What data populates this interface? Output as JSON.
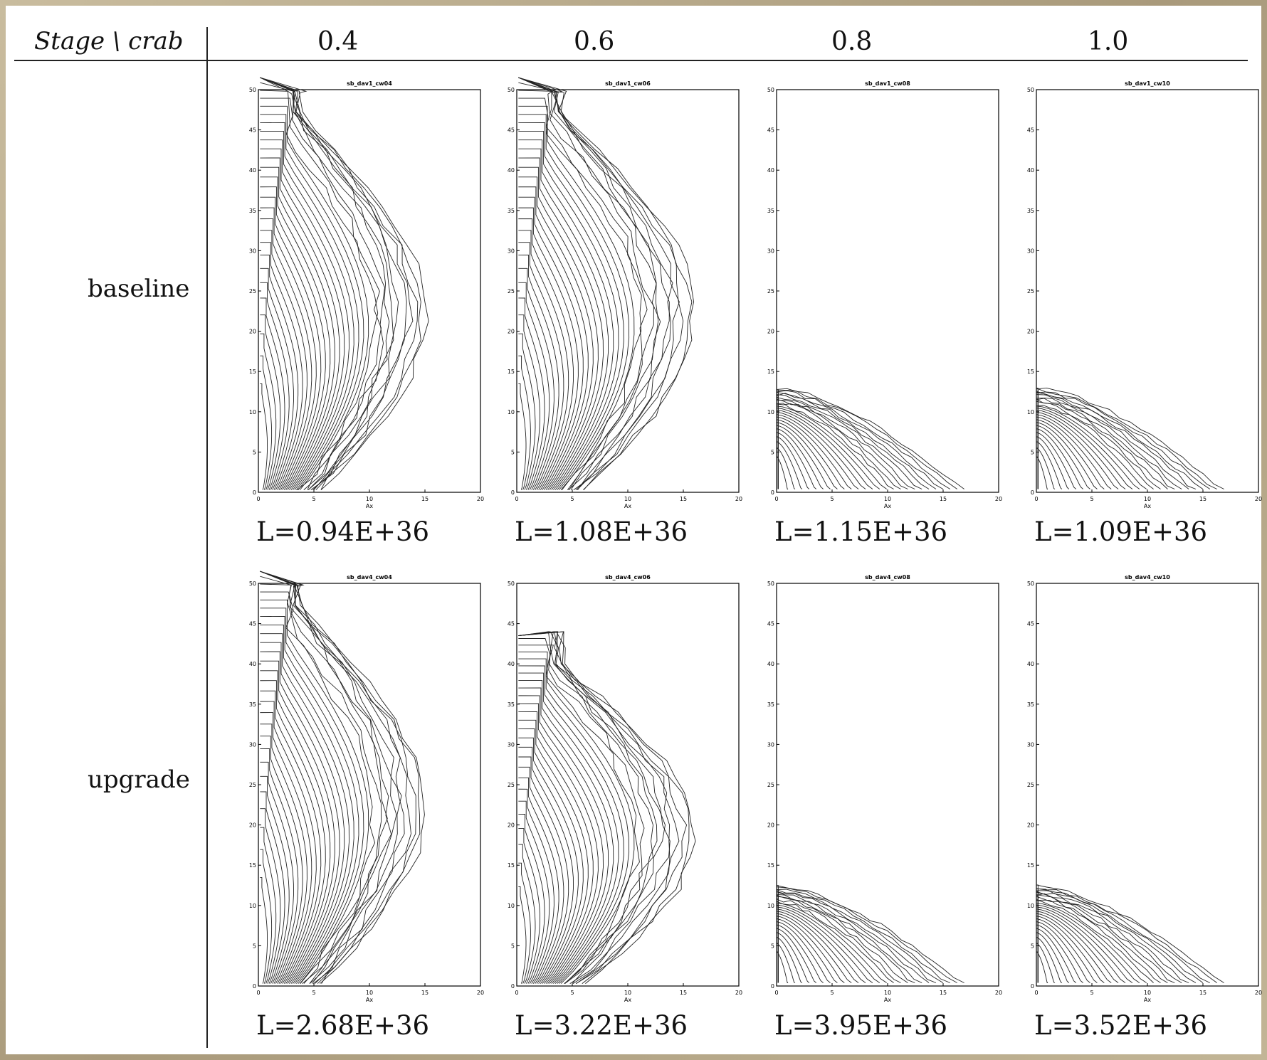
{
  "corner_label": "Stage \\ crab",
  "columns": [
    "0.4",
    "0.6",
    "0.8",
    "1.0"
  ],
  "rows": [
    "baseline",
    "upgrade"
  ],
  "chart_data": [
    {
      "type": "contour",
      "row": "baseline",
      "col": "0.4",
      "title": "sb_dav1_cw04",
      "xlim": [
        0,
        20
      ],
      "ylim": [
        0,
        50
      ],
      "x_ticks": [
        "0",
        "5",
        "10",
        "15",
        "20"
      ],
      "y_ticks": [
        "0",
        "5",
        "10",
        "15",
        "20",
        "25",
        "30",
        "35",
        "40",
        "45",
        "50"
      ],
      "xlabel": "Ax",
      "luminosity": "L=0.94E+36",
      "shape": "tall"
    },
    {
      "type": "contour",
      "row": "baseline",
      "col": "0.6",
      "title": "sb_dav1_cw06",
      "xlim": [
        0,
        20
      ],
      "ylim": [
        0,
        50
      ],
      "x_ticks": [
        "0",
        "5",
        "10",
        "15",
        "20"
      ],
      "y_ticks": [
        "0",
        "5",
        "10",
        "15",
        "20",
        "25",
        "30",
        "35",
        "40",
        "45",
        "50"
      ],
      "xlabel": "Ax",
      "luminosity": "L=1.08E+36",
      "shape": "tall"
    },
    {
      "type": "contour",
      "row": "baseline",
      "col": "0.8",
      "title": "sb_dav1_cw08",
      "xlim": [
        0,
        20
      ],
      "ylim": [
        0,
        50
      ],
      "x_ticks": [
        "0",
        "5",
        "10",
        "15",
        "20"
      ],
      "y_ticks": [
        "0",
        "5",
        "10",
        "15",
        "20",
        "25",
        "30",
        "35",
        "40",
        "45",
        "50"
      ],
      "xlabel": "Ax",
      "luminosity": "L=1.15E+36",
      "shape": "short"
    },
    {
      "type": "contour",
      "row": "baseline",
      "col": "1.0",
      "title": "sb_dav1_cw10",
      "xlim": [
        0,
        20
      ],
      "ylim": [
        0,
        50
      ],
      "x_ticks": [
        "0",
        "5",
        "10",
        "15",
        "20"
      ],
      "y_ticks": [
        "0",
        "5",
        "10",
        "15",
        "20",
        "25",
        "30",
        "35",
        "40",
        "45",
        "50"
      ],
      "xlabel": "Ax",
      "luminosity": "L=1.09E+36",
      "shape": "short"
    },
    {
      "type": "contour",
      "row": "upgrade",
      "col": "0.4",
      "title": "sb_dav4_cw04",
      "xlim": [
        0,
        20
      ],
      "ylim": [
        0,
        50
      ],
      "x_ticks": [
        "0",
        "5",
        "10",
        "15",
        "20"
      ],
      "y_ticks": [
        "0",
        "5",
        "10",
        "15",
        "20",
        "25",
        "30",
        "35",
        "40",
        "45",
        "50"
      ],
      "xlabel": "Ax",
      "luminosity": "L=2.68E+36",
      "shape": "tall"
    },
    {
      "type": "contour",
      "row": "upgrade",
      "col": "0.6",
      "title": "sb_dav4_cw06",
      "xlim": [
        0,
        20
      ],
      "ylim": [
        0,
        50
      ],
      "x_ticks": [
        "0",
        "5",
        "10",
        "15",
        "20"
      ],
      "y_ticks": [
        "0",
        "5",
        "10",
        "15",
        "20",
        "25",
        "30",
        "35",
        "40",
        "45",
        "50"
      ],
      "xlabel": "Ax",
      "luminosity": "L=3.22E+36",
      "shape": "tall"
    },
    {
      "type": "contour",
      "row": "upgrade",
      "col": "0.8",
      "title": "sb_dav4_cw08",
      "xlim": [
        0,
        20
      ],
      "ylim": [
        0,
        50
      ],
      "x_ticks": [
        "0",
        "5",
        "10",
        "15",
        "20"
      ],
      "y_ticks": [
        "0",
        "5",
        "10",
        "15",
        "20",
        "25",
        "30",
        "35",
        "40",
        "45",
        "50"
      ],
      "xlabel": "Ax",
      "luminosity": "L=3.95E+36",
      "shape": "short"
    },
    {
      "type": "contour",
      "row": "upgrade",
      "col": "1.0",
      "title": "sb_dav4_cw10",
      "xlim": [
        0,
        20
      ],
      "ylim": [
        0,
        50
      ],
      "x_ticks": [
        "0",
        "5",
        "10",
        "15",
        "20"
      ],
      "y_ticks": [
        "0",
        "5",
        "10",
        "15",
        "20",
        "25",
        "30",
        "35",
        "40",
        "45",
        "50"
      ],
      "xlabel": "Ax",
      "luminosity": "L=3.52E+36",
      "shape": "short"
    }
  ]
}
